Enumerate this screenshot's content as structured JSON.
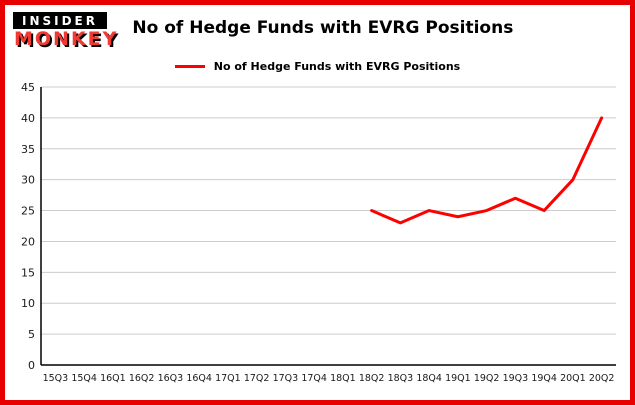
{
  "logo": {
    "line1": "INSIDER",
    "line2": "MONKEY"
  },
  "header": {
    "title": "No of Hedge Funds with EVRG Positions"
  },
  "legend": {
    "label": "No of Hedge Funds with EVRG Positions",
    "color": "#ff0000"
  },
  "colors": {
    "border": "#e80000",
    "line": "#ff0000",
    "grid": "#cccccc",
    "axis": "#000000",
    "tick_text": "#1a1a1a"
  },
  "chart_data": {
    "type": "line",
    "title": "No of Hedge Funds with EVRG Positions",
    "xlabel": "",
    "ylabel": "",
    "ylim": [
      0,
      45
    ],
    "ytick_step": 5,
    "grid": true,
    "legend_position": "top",
    "categories": [
      "15Q3",
      "15Q4",
      "16Q1",
      "16Q2",
      "16Q3",
      "16Q4",
      "17Q1",
      "17Q2",
      "17Q3",
      "17Q4",
      "18Q1",
      "18Q2",
      "18Q3",
      "18Q4",
      "19Q1",
      "19Q2",
      "19Q3",
      "19Q4",
      "20Q1",
      "20Q2"
    ],
    "series": [
      {
        "name": "No of Hedge Funds with EVRG Positions",
        "color": "#ff0000",
        "values": [
          null,
          null,
          null,
          null,
          null,
          null,
          null,
          null,
          null,
          null,
          null,
          25,
          23,
          25,
          24,
          25,
          27,
          25,
          30,
          40
        ]
      }
    ]
  }
}
